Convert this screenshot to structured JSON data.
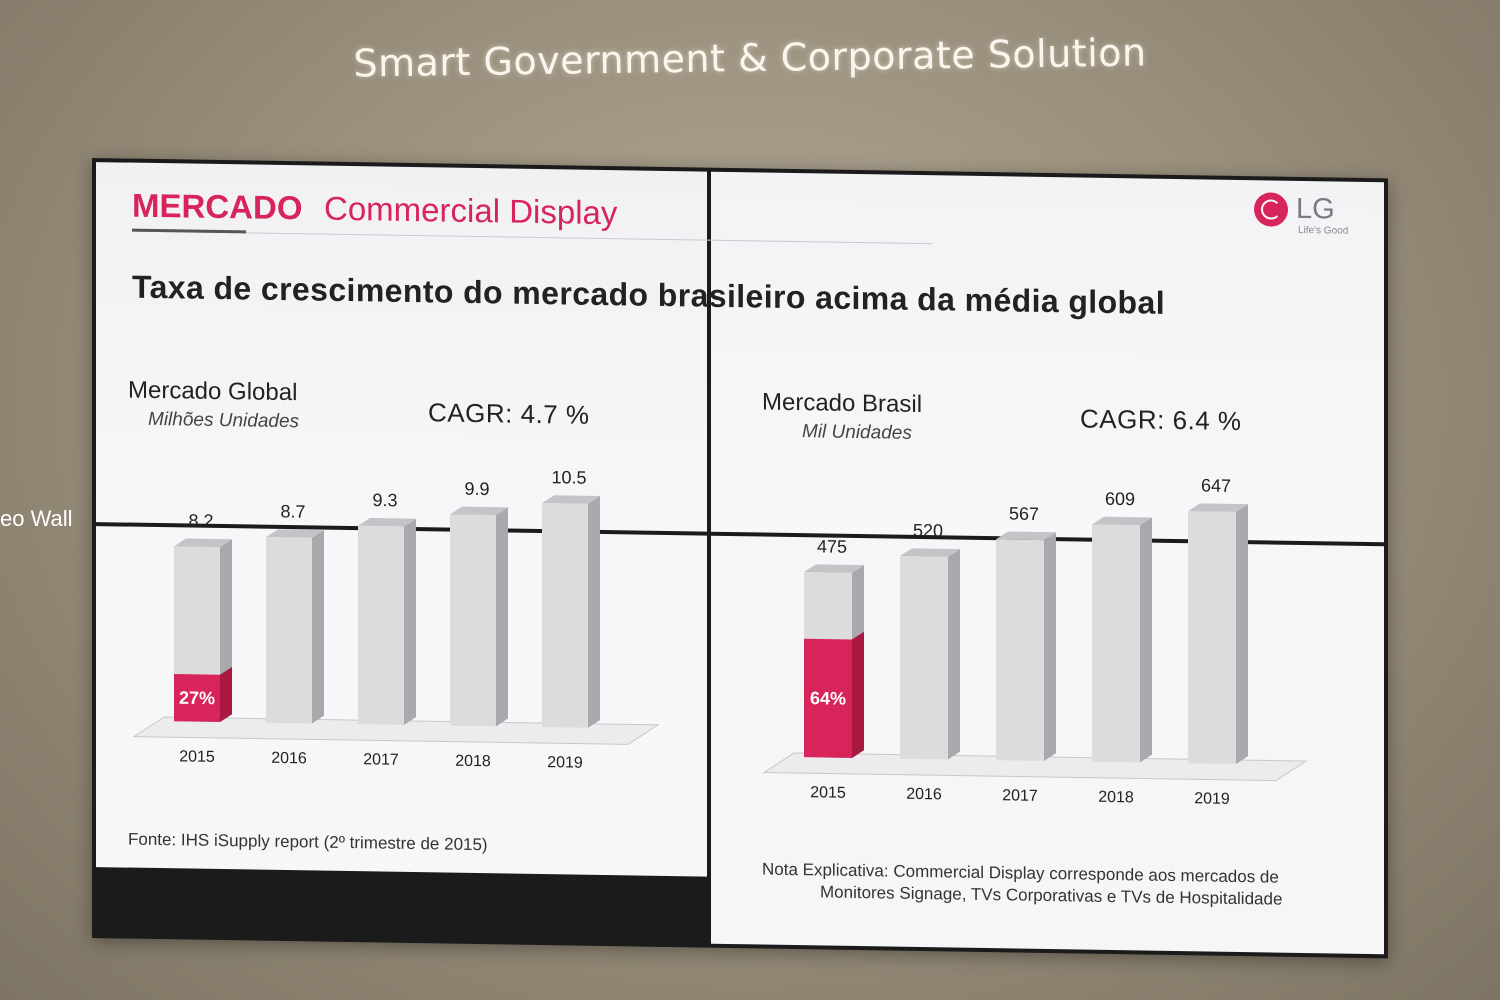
{
  "wall_title": "Smart Government & Corporate Solution",
  "side_label": "eo Wall",
  "slide": {
    "tag": "MERCADO",
    "subtitle": "Commercial Display",
    "headline": "Taxa de crescimento do mercado brasileiro acima da média global",
    "logo_text": "LG",
    "logo_tagline": "Life's Good",
    "colors": {
      "accent": "#d7245a",
      "bar": "#dcdcdc",
      "bar_side": "#a9a9ad"
    }
  },
  "chart_data": [
    {
      "type": "bar",
      "title": "Mercado Global",
      "unit": "Milhões Unidades",
      "cagr_label": "CAGR: 4.7 %",
      "categories": [
        "2015",
        "2016",
        "2017",
        "2018",
        "2019"
      ],
      "values": [
        8.2,
        8.7,
        9.3,
        9.9,
        10.5
      ],
      "value_labels": [
        "8.2",
        "8.7",
        "9.3",
        "9.9",
        "10.5"
      ],
      "highlight": {
        "index": 0,
        "fraction": 0.27,
        "label": "27%"
      },
      "note": "Fonte: IHS iSupply report (2º trimestre de 2015)"
    },
    {
      "type": "bar",
      "title": "Mercado Brasil",
      "unit": "Mil Unidades",
      "cagr_label": "CAGR: 6.4 %",
      "categories": [
        "2015",
        "2016",
        "2017",
        "2018",
        "2019"
      ],
      "values": [
        475,
        520,
        567,
        609,
        647
      ],
      "value_labels": [
        "475",
        "520",
        "567",
        "609",
        "647"
      ],
      "highlight": {
        "index": 0,
        "fraction": 0.64,
        "label": "64%"
      },
      "note_line1": "Nota Explicativa: Commercial Display corresponde aos mercados de",
      "note_line2": "Monitores Signage, TVs Corporativas e TVs de Hospitalidade"
    }
  ]
}
